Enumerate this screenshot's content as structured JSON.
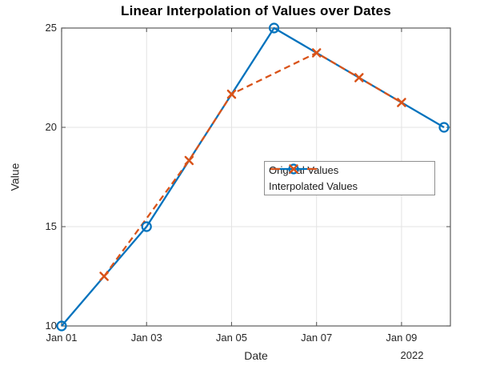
{
  "chart_data": {
    "type": "line",
    "title": "Linear Interpolation of Values over Dates",
    "xlabel": "Date",
    "ylabel": "Value",
    "x_axis_year": "2022",
    "x_tick_labels": [
      "Jan 01",
      "Jan 03",
      "Jan 05",
      "Jan 07",
      "Jan 09"
    ],
    "x_tick_days": [
      1,
      3,
      5,
      7,
      9
    ],
    "y_ticks": [
      10,
      15,
      20,
      25
    ],
    "ylim": [
      10,
      25
    ],
    "xlim_days": [
      1,
      10.15
    ],
    "grid": true,
    "legend_position": "middle-right",
    "colors": {
      "original": "#0072BD",
      "interpolated": "#D95319",
      "axis": "#5c5c5c",
      "grid": "#e3e3e3",
      "text": "#262626"
    },
    "series": [
      {
        "name": "Original Values",
        "color": "#0072BD",
        "line_style": "solid",
        "marker": "circle",
        "dates": [
          "Jan 01",
          "Jan 03",
          "Jan 06",
          "Jan 10"
        ],
        "days": [
          1,
          3,
          6,
          10
        ],
        "values": [
          10,
          15,
          25,
          20
        ]
      },
      {
        "name": "Interpolated Values",
        "color": "#D95319",
        "line_style": "dashed",
        "marker": "x",
        "dates": [
          "Jan 02",
          "Jan 04",
          "Jan 05",
          "Jan 07",
          "Jan 08",
          "Jan 09"
        ],
        "days": [
          2,
          4,
          5,
          7,
          8,
          9
        ],
        "values": [
          12.5,
          18.33,
          21.67,
          23.75,
          22.5,
          21.25
        ]
      }
    ]
  }
}
